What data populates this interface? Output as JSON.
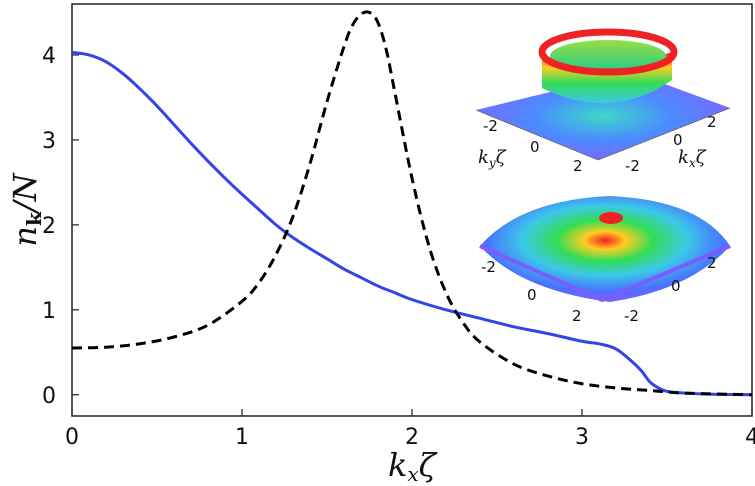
{
  "chart_data": {
    "type": "line",
    "xlabel": "k_xζ",
    "ylabel": "n_k/N",
    "xlim": [
      0,
      4
    ],
    "ylim": [
      -0.25,
      4.6
    ],
    "xticks": [
      0,
      1,
      2,
      3,
      4
    ],
    "yticks": [
      0,
      1,
      2,
      3,
      4
    ],
    "grid": false,
    "series": [
      {
        "color": "#3344e8",
        "style": "solid",
        "x": [
          0,
          0.1,
          0.2,
          0.3,
          0.4,
          0.5,
          0.6,
          0.7,
          0.8,
          0.9,
          1.0,
          1.1,
          1.2,
          1.3,
          1.4,
          1.5,
          1.6,
          1.7,
          1.8,
          1.9,
          2.0,
          2.2,
          2.4,
          2.6,
          2.8,
          3.0,
          3.1,
          3.2,
          3.3,
          3.35,
          3.4,
          3.45,
          3.5,
          3.6,
          3.7,
          3.8,
          4.0
        ],
        "y": [
          4.03,
          4.0,
          3.92,
          3.78,
          3.6,
          3.4,
          3.18,
          2.96,
          2.75,
          2.55,
          2.36,
          2.18,
          2.0,
          1.85,
          1.72,
          1.6,
          1.48,
          1.38,
          1.28,
          1.2,
          1.12,
          1.0,
          0.9,
          0.8,
          0.72,
          0.63,
          0.6,
          0.54,
          0.38,
          0.28,
          0.15,
          0.08,
          0.04,
          0.02,
          0.01,
          0.005,
          0.0
        ]
      },
      {
        "color": "#000000",
        "style": "dashed",
        "x": [
          0,
          0.2,
          0.4,
          0.6,
          0.8,
          1.0,
          1.1,
          1.2,
          1.3,
          1.4,
          1.5,
          1.6,
          1.65,
          1.7,
          1.75,
          1.8,
          1.85,
          1.9,
          2.0,
          2.1,
          2.2,
          2.3,
          2.4,
          2.6,
          2.8,
          3.0,
          3.2,
          3.4,
          3.6,
          4.0
        ],
        "y": [
          0.55,
          0.56,
          0.6,
          0.68,
          0.82,
          1.1,
          1.32,
          1.65,
          2.1,
          2.72,
          3.45,
          4.1,
          4.35,
          4.48,
          4.5,
          4.38,
          4.05,
          3.55,
          2.55,
          1.75,
          1.2,
          0.85,
          0.62,
          0.36,
          0.22,
          0.13,
          0.08,
          0.05,
          0.02,
          0.0
        ]
      }
    ]
  },
  "insets": {
    "top": {
      "ticks_left": [
        "-2",
        "0",
        "2"
      ],
      "ticks_right": [
        "2",
        "0",
        "-2"
      ],
      "label_left": "k_yζ",
      "label_right": "k_xζ"
    },
    "bottom": {
      "ticks_left": [
        "-2",
        "0",
        "2"
      ],
      "ticks_right": [
        "2",
        "0",
        "-2"
      ]
    }
  },
  "colors": {
    "solid_series": "#3344e8",
    "dashed_series": "#000000",
    "surface_base": "#7a5cff",
    "surface_mid": "#22dd55",
    "surface_peak": "#ee2222"
  }
}
